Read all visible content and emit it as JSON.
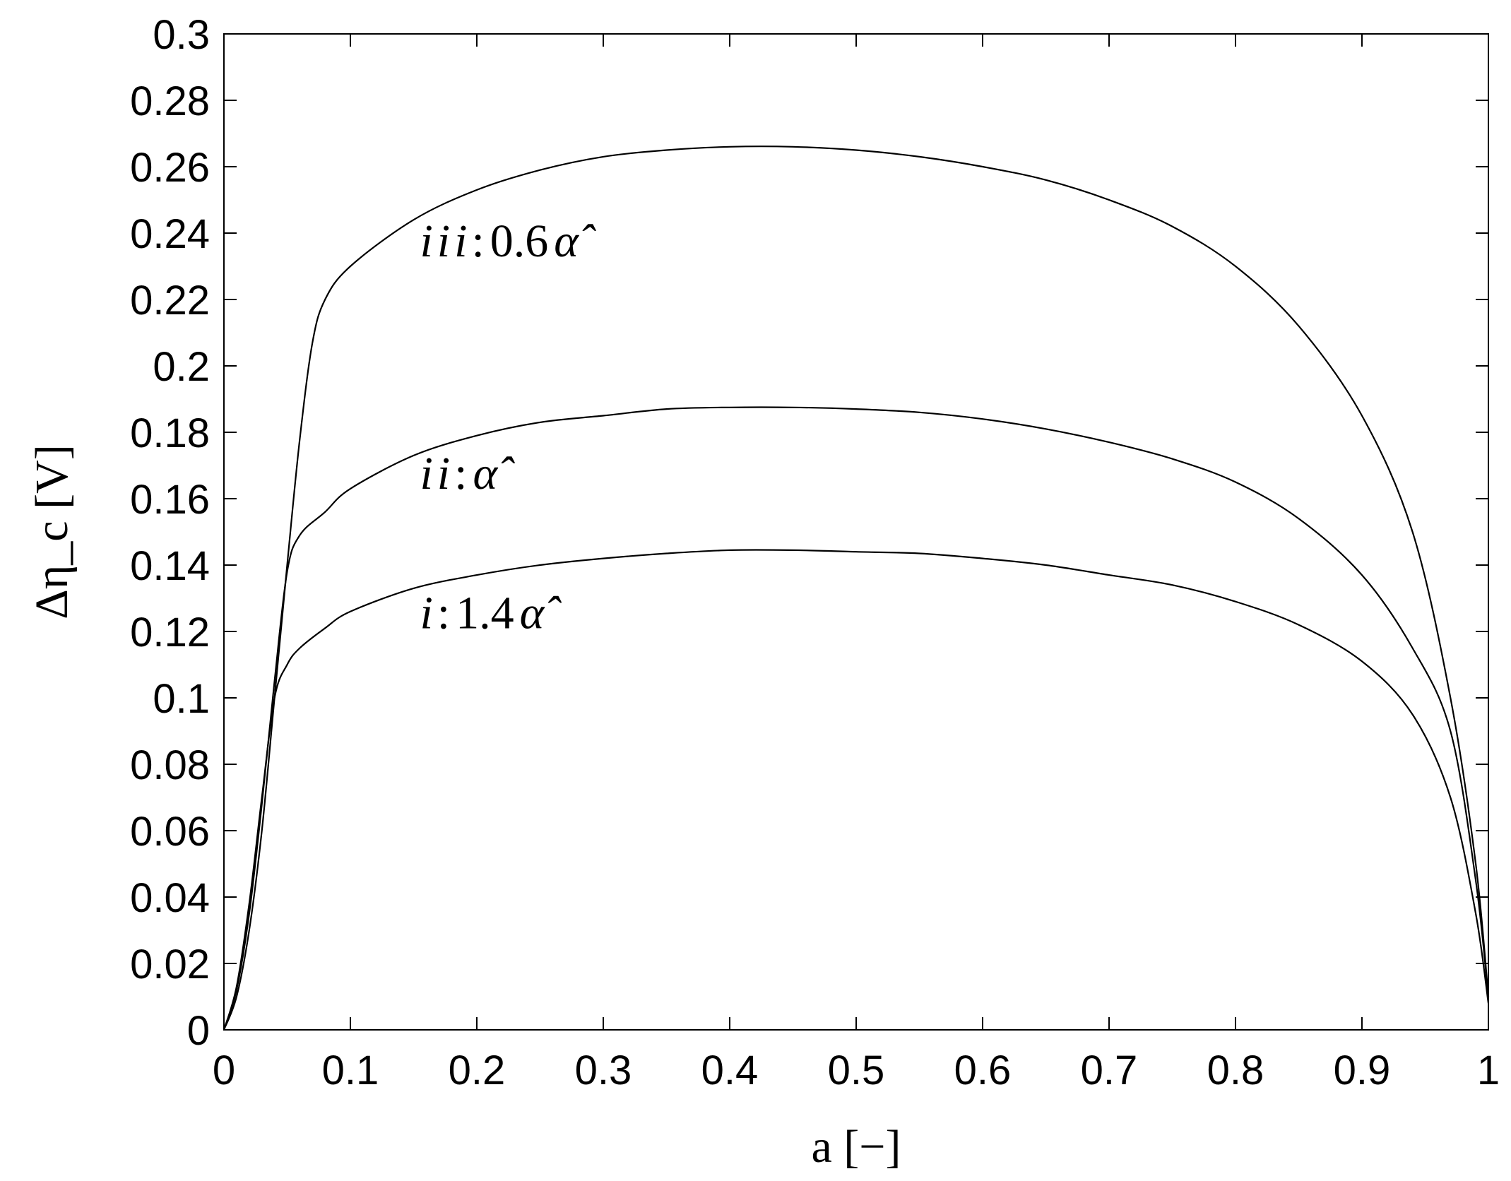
{
  "chart_data": {
    "type": "line",
    "xlabel": "a [−]",
    "ylabel": "Δη_c [V]",
    "xlim": [
      0,
      1
    ],
    "ylim": [
      0,
      0.3
    ],
    "x_ticks": [
      "0",
      "0.1",
      "0.2",
      "0.3",
      "0.4",
      "0.5",
      "0.6",
      "0.7",
      "0.8",
      "0.9",
      "1"
    ],
    "y_ticks": [
      "0",
      "0.02",
      "0.04",
      "0.06",
      "0.08",
      "0.1",
      "0.12",
      "0.14",
      "0.16",
      "0.18",
      "0.2",
      "0.22",
      "0.24",
      "0.26",
      "0.28",
      "0.3"
    ],
    "grid": false,
    "series": [
      {
        "name": "iii: 0.6 α̂",
        "points": [
          [
            0,
            0
          ],
          [
            0.01,
            0.01
          ],
          [
            0.02,
            0.03
          ],
          [
            0.03,
            0.06
          ],
          [
            0.04,
            0.1
          ],
          [
            0.05,
            0.14
          ],
          [
            0.06,
            0.178
          ],
          [
            0.07,
            0.207
          ],
          [
            0.08,
            0.22
          ],
          [
            0.1,
            0.23
          ],
          [
            0.15,
            0.244
          ],
          [
            0.2,
            0.253
          ],
          [
            0.25,
            0.259
          ],
          [
            0.3,
            0.263
          ],
          [
            0.35,
            0.265
          ],
          [
            0.4,
            0.266
          ],
          [
            0.45,
            0.266
          ],
          [
            0.5,
            0.265
          ],
          [
            0.55,
            0.263
          ],
          [
            0.6,
            0.26
          ],
          [
            0.65,
            0.256
          ],
          [
            0.7,
            0.25
          ],
          [
            0.75,
            0.242
          ],
          [
            0.8,
            0.23
          ],
          [
            0.85,
            0.212
          ],
          [
            0.9,
            0.185
          ],
          [
            0.94,
            0.15
          ],
          [
            0.97,
            0.1
          ],
          [
            0.99,
            0.05
          ],
          [
            1,
            0.01
          ]
        ]
      },
      {
        "name": "ii: α̂",
        "points": [
          [
            0,
            0
          ],
          [
            0.01,
            0.012
          ],
          [
            0.02,
            0.035
          ],
          [
            0.03,
            0.068
          ],
          [
            0.04,
            0.105
          ],
          [
            0.05,
            0.138
          ],
          [
            0.06,
            0.149
          ],
          [
            0.08,
            0.156
          ],
          [
            0.1,
            0.163
          ],
          [
            0.15,
            0.173
          ],
          [
            0.2,
            0.179
          ],
          [
            0.25,
            0.183
          ],
          [
            0.3,
            0.185
          ],
          [
            0.35,
            0.187
          ],
          [
            0.4,
            0.1875
          ],
          [
            0.45,
            0.1875
          ],
          [
            0.5,
            0.187
          ],
          [
            0.55,
            0.186
          ],
          [
            0.6,
            0.184
          ],
          [
            0.65,
            0.181
          ],
          [
            0.7,
            0.177
          ],
          [
            0.75,
            0.172
          ],
          [
            0.8,
            0.165
          ],
          [
            0.85,
            0.154
          ],
          [
            0.9,
            0.137
          ],
          [
            0.94,
            0.115
          ],
          [
            0.97,
            0.09
          ],
          [
            0.99,
            0.045
          ],
          [
            1,
            0.01
          ]
        ]
      },
      {
        "name": "i: 1.4 α̂",
        "points": [
          [
            0,
            0
          ],
          [
            0.01,
            0.013
          ],
          [
            0.02,
            0.038
          ],
          [
            0.03,
            0.07
          ],
          [
            0.04,
            0.1
          ],
          [
            0.05,
            0.11
          ],
          [
            0.06,
            0.115
          ],
          [
            0.08,
            0.121
          ],
          [
            0.1,
            0.126
          ],
          [
            0.15,
            0.133
          ],
          [
            0.2,
            0.137
          ],
          [
            0.25,
            0.14
          ],
          [
            0.3,
            0.142
          ],
          [
            0.35,
            0.1435
          ],
          [
            0.4,
            0.1445
          ],
          [
            0.45,
            0.1445
          ],
          [
            0.5,
            0.144
          ],
          [
            0.55,
            0.1435
          ],
          [
            0.6,
            0.142
          ],
          [
            0.65,
            0.14
          ],
          [
            0.7,
            0.137
          ],
          [
            0.75,
            0.134
          ],
          [
            0.8,
            0.129
          ],
          [
            0.85,
            0.122
          ],
          [
            0.9,
            0.111
          ],
          [
            0.94,
            0.095
          ],
          [
            0.97,
            0.07
          ],
          [
            0.99,
            0.035
          ],
          [
            1,
            0.008
          ]
        ]
      }
    ],
    "annotations": [
      {
        "roman": "iii",
        "factor": "0.6",
        "symbol": "α̂",
        "x": 0.155,
        "y": 0.233
      },
      {
        "roman": "ii",
        "factor": "",
        "symbol": "α̂",
        "x": 0.155,
        "y": 0.163
      },
      {
        "roman": "i",
        "factor": "1.4",
        "symbol": "α̂",
        "x": 0.155,
        "y": 0.121
      }
    ]
  }
}
